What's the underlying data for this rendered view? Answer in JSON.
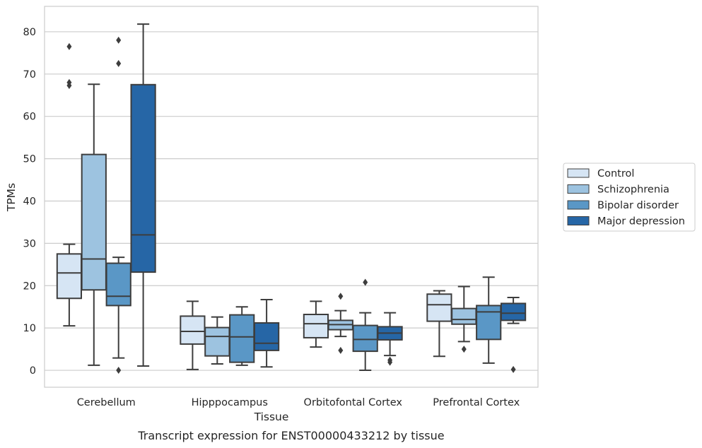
{
  "chart_data": {
    "type": "box",
    "title": "",
    "caption": "Transcript expression for ENST00000433212 by tissue",
    "xlabel": "Tissue",
    "ylabel": "TPMs",
    "ylim": [
      -4,
      86
    ],
    "yticks": [
      0,
      10,
      20,
      30,
      40,
      50,
      60,
      70,
      80
    ],
    "grid": true,
    "legend_position": "right",
    "categories": [
      "Cerebellum",
      "Hipppocampus",
      "Orbitofontal Cortex",
      "Prefrontal Cortex"
    ],
    "series": [
      {
        "name": "Control",
        "color": "#d6e5f4",
        "boxes": [
          {
            "whislo": 10.5,
            "q1": 17.0,
            "med": 23.0,
            "q3": 27.5,
            "whishi": 29.8,
            "fliers": [
              76.5,
              68.0,
              67.3
            ]
          },
          {
            "whislo": 0.2,
            "q1": 6.2,
            "med": 9.2,
            "q3": 12.8,
            "whishi": 16.3,
            "fliers": []
          },
          {
            "whislo": 5.5,
            "q1": 7.7,
            "med": 11.0,
            "q3": 13.2,
            "whishi": 16.3,
            "fliers": []
          },
          {
            "whislo": 3.3,
            "q1": 11.6,
            "med": 15.5,
            "q3": 18.0,
            "whishi": 18.8,
            "fliers": []
          }
        ]
      },
      {
        "name": "Schizophrenia",
        "color": "#9dc3e0",
        "boxes": [
          {
            "whislo": 1.2,
            "q1": 19.0,
            "med": 26.3,
            "q3": 51.0,
            "whishi": 67.6,
            "fliers": []
          },
          {
            "whislo": 1.5,
            "q1": 3.4,
            "med": 8.0,
            "q3": 10.1,
            "whishi": 12.6,
            "fliers": []
          },
          {
            "whislo": 8.0,
            "q1": 9.6,
            "med": 10.8,
            "q3": 11.8,
            "whishi": 14.1,
            "fliers": [
              17.5,
              4.7
            ]
          },
          {
            "whislo": 6.8,
            "q1": 10.9,
            "med": 12.0,
            "q3": 14.6,
            "whishi": 19.8,
            "fliers": [
              5.0
            ]
          }
        ]
      },
      {
        "name": "Bipolar disorder",
        "color": "#5a97c6",
        "boxes": [
          {
            "whislo": 2.9,
            "q1": 15.3,
            "med": 17.5,
            "q3": 25.3,
            "whishi": 26.7,
            "fliers": [
              78.0,
              72.5,
              0.0
            ]
          },
          {
            "whislo": 1.2,
            "q1": 1.9,
            "med": 7.9,
            "q3": 13.1,
            "whishi": 15.0,
            "fliers": []
          },
          {
            "whislo": 0.0,
            "q1": 4.5,
            "med": 7.3,
            "q3": 10.6,
            "whishi": 13.6,
            "fliers": [
              20.8
            ]
          },
          {
            "whislo": 1.7,
            "q1": 7.3,
            "med": 13.8,
            "q3": 15.3,
            "whishi": 22.0,
            "fliers": []
          }
        ]
      },
      {
        "name": "Major depression",
        "color": "#2666a6",
        "boxes": [
          {
            "whislo": 1.0,
            "q1": 23.2,
            "med": 32.0,
            "q3": 67.5,
            "whishi": 81.8,
            "fliers": []
          },
          {
            "whislo": 0.8,
            "q1": 4.7,
            "med": 6.4,
            "q3": 11.2,
            "whishi": 16.7,
            "fliers": []
          },
          {
            "whislo": 3.5,
            "q1": 7.2,
            "med": 8.8,
            "q3": 10.3,
            "whishi": 13.6,
            "fliers": [
              2.4,
              1.9
            ]
          },
          {
            "whislo": 11.1,
            "q1": 11.8,
            "med": 13.5,
            "q3": 15.8,
            "whishi": 17.2,
            "fliers": [
              0.2
            ]
          }
        ]
      }
    ]
  }
}
